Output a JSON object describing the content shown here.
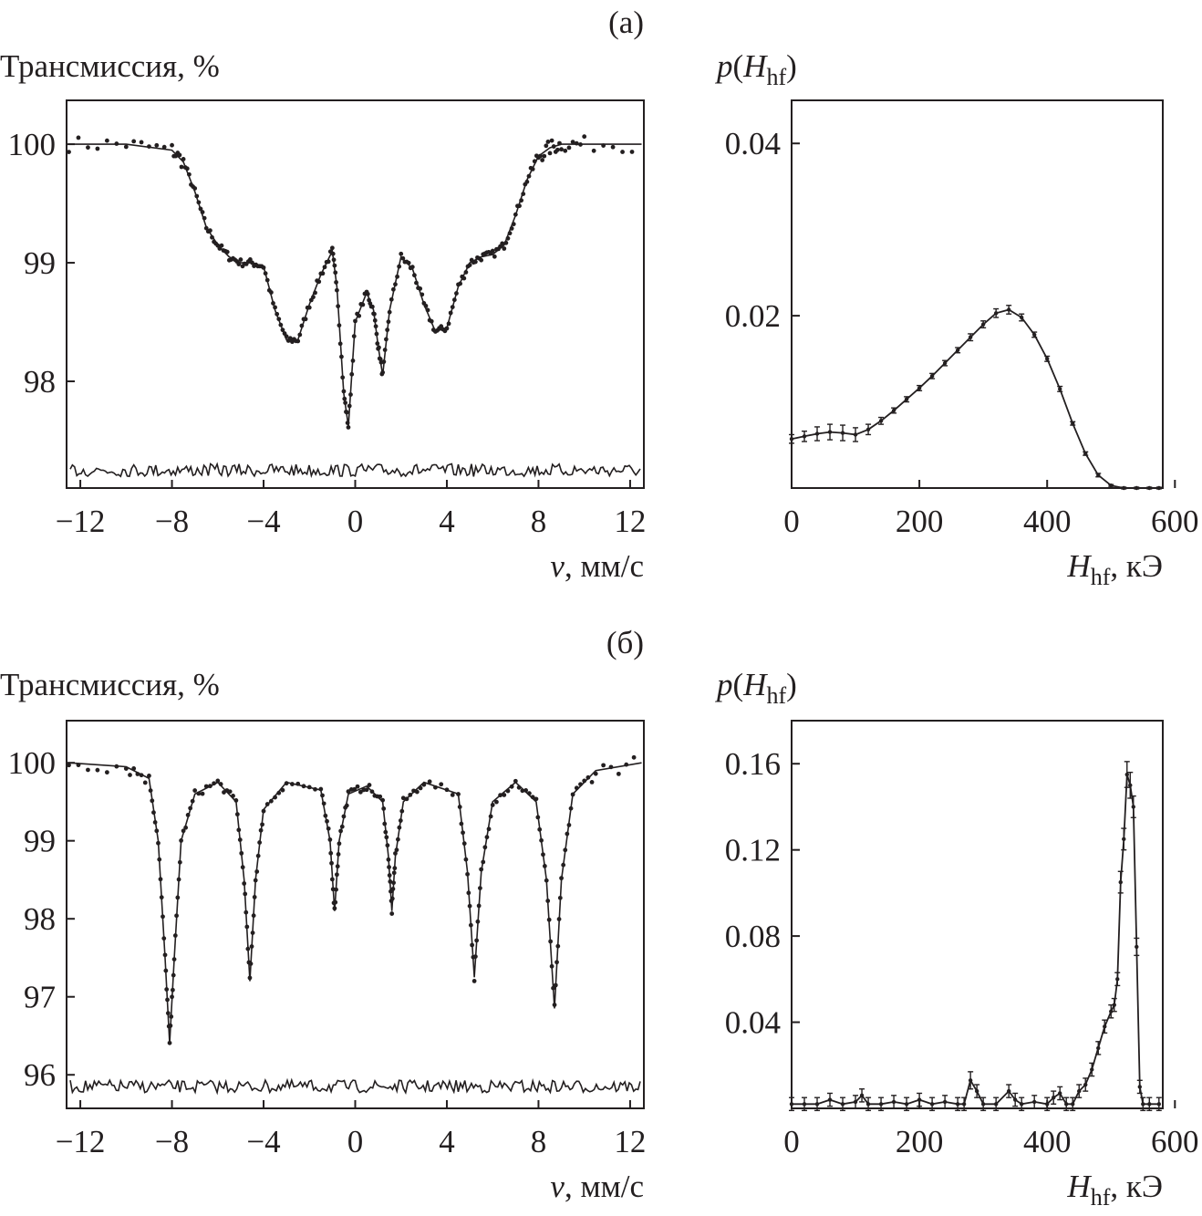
{
  "panels": [
    {
      "label": "(а)"
    },
    {
      "label": "(б)"
    }
  ],
  "chart_data": [
    {
      "type": "line",
      "panel": "(а)",
      "ylabel": "Трансмиссия, %",
      "xlabel": {
        "var": "v",
        "unit": ", мм/с"
      },
      "xlim": [
        -12.6,
        12.6
      ],
      "ylim": [
        97.1,
        100.37
      ],
      "x_ticks": [
        -12,
        -8,
        -4,
        0,
        4,
        8,
        12
      ],
      "x_tick_labels": [
        "−12",
        "−8",
        "−4",
        "0",
        "4",
        "8",
        "12"
      ],
      "y_ticks": [
        98,
        99,
        100
      ],
      "y_tick_labels": [
        "98",
        "99",
        "100"
      ],
      "grid": false,
      "series": [
        {
          "kind": "fit-with-experimental-points",
          "x": [
            -12.5,
            -10,
            -8,
            -7.5,
            -7,
            -6.5,
            -6,
            -5.5,
            -5,
            -4.5,
            -4,
            -3.5,
            -3,
            -2.5,
            -2,
            -1.5,
            -1,
            -0.8,
            -0.5,
            -0.3,
            0,
            0.5,
            0.8,
            1,
            1.2,
            1.5,
            2,
            2.5,
            3,
            3.5,
            4,
            4.5,
            5,
            5.5,
            6,
            6.5,
            7,
            7.5,
            8,
            8.5,
            9,
            10,
            12.5
          ],
          "y": [
            100,
            100,
            99.95,
            99.85,
            99.6,
            99.3,
            99.15,
            99.05,
            99.0,
            99.0,
            98.97,
            98.6,
            98.35,
            98.35,
            98.65,
            98.9,
            99.1,
            98.8,
            97.9,
            97.62,
            98.5,
            98.75,
            98.6,
            98.3,
            98.05,
            98.6,
            99.05,
            98.95,
            98.65,
            98.42,
            98.45,
            98.8,
            99.0,
            99.05,
            99.07,
            99.15,
            99.4,
            99.7,
            99.9,
            99.97,
            100,
            100,
            100
          ]
        },
        {
          "kind": "residual",
          "baseline": 97.25
        }
      ]
    },
    {
      "type": "line",
      "panel": "(а)",
      "ylabel": {
        "pre": "p",
        "open": "(",
        "var": "H",
        "sub": "hf",
        "close": ")"
      },
      "xlabel": {
        "var": "H",
        "sub": "hf",
        "unit": ", кЭ"
      },
      "xlim": [
        0,
        581
      ],
      "ylim": [
        0,
        0.045
      ],
      "x_ticks": [
        0,
        200,
        400,
        600
      ],
      "x_tick_labels": [
        "0",
        "200",
        "400",
        "600"
      ],
      "y_ticks": [
        0.02,
        0.04
      ],
      "y_tick_labels": [
        "0.02",
        "0.04"
      ],
      "grid": false,
      "series": [
        {
          "kind": "distribution-with-error-bars",
          "x": [
            0,
            20,
            40,
            60,
            80,
            100,
            120,
            140,
            160,
            180,
            200,
            220,
            240,
            260,
            280,
            300,
            320,
            340,
            360,
            380,
            400,
            420,
            440,
            460,
            480,
            500,
            520,
            540,
            560,
            575
          ],
          "y": [
            0.0057,
            0.006,
            0.0063,
            0.0065,
            0.0064,
            0.0062,
            0.0068,
            0.0078,
            0.009,
            0.0103,
            0.0116,
            0.013,
            0.0145,
            0.016,
            0.0175,
            0.019,
            0.0203,
            0.0207,
            0.0198,
            0.0178,
            0.015,
            0.0115,
            0.0075,
            0.004,
            0.0015,
            0.0003,
            0,
            0,
            0,
            0
          ],
          "error": [
            0.0005,
            0.0006,
            0.0008,
            0.0009,
            0.0009,
            0.0008,
            0.0006,
            0.0004,
            0.0003,
            0.0003,
            0.0003,
            0.0003,
            0.0003,
            0.0003,
            0.0004,
            0.0004,
            0.0005,
            0.0005,
            0.0004,
            0.0003,
            0.0003,
            0.0003,
            0.0002,
            0.0002,
            0.0002,
            0.0001,
            0.0001,
            0.0001,
            0.0001,
            0.0001
          ]
        }
      ]
    },
    {
      "type": "line",
      "panel": "(б)",
      "ylabel": "Трансмиссия, %",
      "xlabel": {
        "var": "v",
        "unit": ", мм/с"
      },
      "xlim": [
        -12.6,
        12.6
      ],
      "ylim": [
        95.57,
        100.54
      ],
      "x_ticks": [
        -12,
        -8,
        -4,
        0,
        4,
        8,
        12
      ],
      "x_tick_labels": [
        "−12",
        "−8",
        "−4",
        "0",
        "4",
        "8",
        "12"
      ],
      "y_ticks": [
        96,
        97,
        98,
        99,
        100
      ],
      "y_tick_labels": [
        "96",
        "97",
        "98",
        "99",
        "100"
      ],
      "grid": false,
      "series": [
        {
          "kind": "fit-with-experimental-points",
          "x": [
            -12.5,
            -10,
            -9,
            -8.6,
            -8.3,
            -8.1,
            -7.9,
            -7.6,
            -7,
            -6,
            -5.2,
            -4.85,
            -4.6,
            -4.35,
            -4,
            -3,
            -1.5,
            -1.1,
            -0.9,
            -0.7,
            -0.3,
            0.5,
            1.2,
            1.45,
            1.6,
            1.75,
            2.1,
            3,
            4.5,
            4.9,
            5.2,
            5.5,
            6,
            7,
            7.9,
            8.35,
            8.7,
            9.0,
            9.5,
            10.5,
            12.5
          ],
          "y": [
            100,
            99.95,
            99.8,
            99.0,
            97.5,
            96.4,
            97.5,
            99.0,
            99.6,
            99.75,
            99.5,
            98.5,
            97.2,
            98.5,
            99.4,
            99.75,
            99.65,
            99.0,
            98.1,
            99.0,
            99.6,
            99.7,
            99.5,
            98.8,
            98.1,
            98.8,
            99.5,
            99.75,
            99.6,
            98.6,
            97.25,
            98.6,
            99.5,
            99.75,
            99.5,
            98.5,
            96.85,
            98.5,
            99.6,
            99.9,
            100
          ]
        },
        {
          "kind": "residual",
          "baseline": 95.85
        }
      ]
    },
    {
      "type": "line",
      "panel": "(б)",
      "ylabel": {
        "pre": "p",
        "open": "(",
        "var": "H",
        "sub": "hf",
        "close": ")"
      },
      "xlabel": {
        "var": "H",
        "sub": "hf",
        "unit": ", кЭ"
      },
      "xlim": [
        0,
        581
      ],
      "ylim": [
        0,
        0.18
      ],
      "x_ticks": [
        0,
        200,
        400,
        600
      ],
      "x_tick_labels": [
        "0",
        "200",
        "400",
        "600"
      ],
      "y_ticks": [
        0.04,
        0.08,
        0.12,
        0.16
      ],
      "y_tick_labels": [
        "0.04",
        "0.08",
        "0.12",
        "0.16"
      ],
      "grid": false,
      "series": [
        {
          "kind": "distribution-with-error-bars",
          "x": [
            0,
            20,
            40,
            60,
            80,
            100,
            110,
            120,
            140,
            160,
            180,
            200,
            220,
            240,
            260,
            270,
            280,
            290,
            300,
            320,
            340,
            350,
            360,
            380,
            400,
            410,
            420,
            430,
            440,
            450,
            460,
            470,
            480,
            490,
            500,
            505,
            510,
            515,
            520,
            525,
            530,
            535,
            540,
            545,
            550,
            560,
            575
          ],
          "y": [
            0.002,
            0.002,
            0.002,
            0.004,
            0.002,
            0.003,
            0.006,
            0.002,
            0.002,
            0.003,
            0.002,
            0.004,
            0.002,
            0.003,
            0.002,
            0.002,
            0.013,
            0.008,
            0.002,
            0.002,
            0.008,
            0.004,
            0.002,
            0.003,
            0.002,
            0.005,
            0.007,
            0.002,
            0.002,
            0.008,
            0.011,
            0.018,
            0.028,
            0.038,
            0.045,
            0.048,
            0.06,
            0.105,
            0.125,
            0.155,
            0.15,
            0.14,
            0.075,
            0.01,
            0.002,
            0.002,
            0.002
          ],
          "error": [
            0.003,
            0.003,
            0.003,
            0.003,
            0.003,
            0.003,
            0.003,
            0.003,
            0.003,
            0.003,
            0.003,
            0.003,
            0.003,
            0.003,
            0.003,
            0.003,
            0.004,
            0.003,
            0.003,
            0.003,
            0.003,
            0.003,
            0.003,
            0.003,
            0.003,
            0.003,
            0.003,
            0.003,
            0.003,
            0.003,
            0.003,
            0.003,
            0.003,
            0.003,
            0.003,
            0.003,
            0.003,
            0.005,
            0.005,
            0.006,
            0.006,
            0.005,
            0.004,
            0.003,
            0.003,
            0.003,
            0.003
          ]
        }
      ]
    }
  ]
}
